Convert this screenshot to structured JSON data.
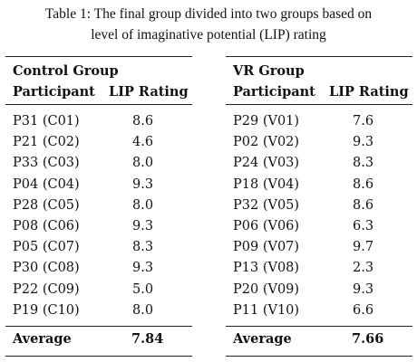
{
  "caption": {
    "line1": "Table 1: The final group divided into two groups based on",
    "line2": "level of imaginative potential (LIP) rating"
  },
  "groups": [
    {
      "title": "Control Group",
      "col_participant": "Participant",
      "col_rating": "LIP Rating",
      "rows": [
        {
          "participant": "P31 (C01)",
          "rating": "8.6"
        },
        {
          "participant": "P21 (C02)",
          "rating": "4.6"
        },
        {
          "participant": "P33 (C03)",
          "rating": "8.0"
        },
        {
          "participant": "P04 (C04)",
          "rating": "9.3"
        },
        {
          "participant": "P28 (C05)",
          "rating": "8.0"
        },
        {
          "participant": "P08 (C06)",
          "rating": "9.3"
        },
        {
          "participant": "P05 (C07)",
          "rating": "8.3"
        },
        {
          "participant": "P30 (C08)",
          "rating": "9.3"
        },
        {
          "participant": "P22 (C09)",
          "rating": "5.0"
        },
        {
          "participant": "P19 (C10)",
          "rating": "8.0"
        }
      ],
      "average_label": "Average",
      "average_value": "7.84"
    },
    {
      "title": "VR Group",
      "col_participant": "Participant",
      "col_rating": "LIP Rating",
      "rows": [
        {
          "participant": "P29 (V01)",
          "rating": "7.6"
        },
        {
          "participant": "P02 (V02)",
          "rating": "9.3"
        },
        {
          "participant": "P24 (V03)",
          "rating": "8.3"
        },
        {
          "participant": "P18 (V04)",
          "rating": "8.6"
        },
        {
          "participant": "P32 (V05)",
          "rating": "8.6"
        },
        {
          "participant": "P06 (V06)",
          "rating": "6.3"
        },
        {
          "participant": "P09 (V07)",
          "rating": "9.7"
        },
        {
          "participant": "P13 (V08)",
          "rating": "2.3"
        },
        {
          "participant": "P20 (V09)",
          "rating": "9.3"
        },
        {
          "participant": "P11 (V10)",
          "rating": "6.6"
        }
      ],
      "average_label": "Average",
      "average_value": "7.66"
    }
  ]
}
